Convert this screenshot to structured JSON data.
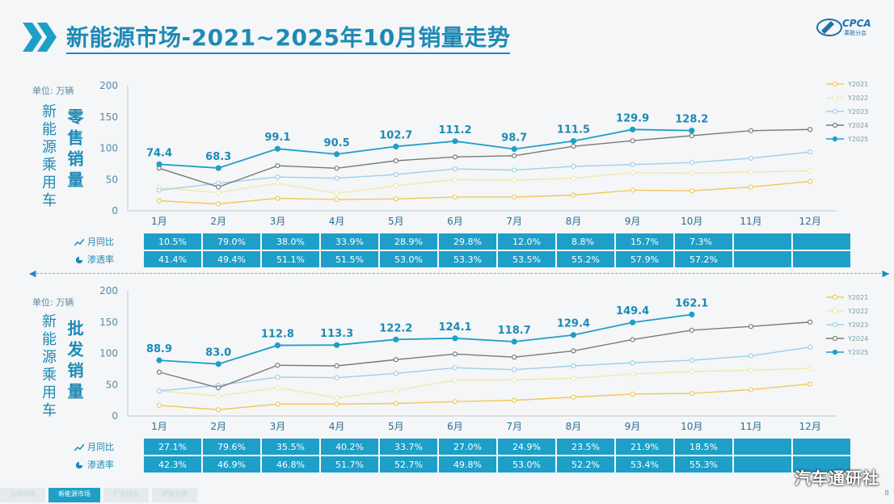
{
  "title": "新能源市场-2021~2025年10月销量走势",
  "brand": {
    "name": "CPCA",
    "sub": "乘联分会"
  },
  "colors": {
    "Y2021": "#f2c85b",
    "Y2022": "#f0eab0",
    "Y2023": "#9fd0ea",
    "Y2024": "#7a7a7a",
    "Y2025": "#1e9fc8"
  },
  "unit_label": "单位: 万辆",
  "side_title": "新能源乘用车",
  "retail_title": "零售销量",
  "wholesale_title": "批发销量",
  "table_labels": {
    "yoy": "月同比",
    "pen": "渗透率"
  },
  "chart_data": [
    {
      "type": "line",
      "categories": [
        "1月",
        "2月",
        "3月",
        "4月",
        "5月",
        "6月",
        "7月",
        "8月",
        "9月",
        "10月",
        "11月",
        "12月"
      ],
      "ylim": [
        0,
        200
      ],
      "yticks": [
        0,
        50,
        100,
        150,
        200
      ],
      "series": [
        {
          "name": "Y2021",
          "values": [
            16,
            11,
            20,
            18,
            19,
            22,
            22,
            25,
            33,
            32,
            38,
            47
          ]
        },
        {
          "name": "Y2022",
          "values": [
            37,
            29,
            44,
            28,
            40,
            50,
            49,
            52,
            61,
            60,
            62,
            64
          ]
        },
        {
          "name": "Y2023",
          "values": [
            33,
            44,
            54,
            52,
            58,
            67,
            65,
            71,
            74,
            77,
            84,
            94
          ]
        },
        {
          "name": "Y2024",
          "values": [
            68,
            38,
            72,
            68,
            80,
            86,
            88,
            103,
            112,
            120,
            128,
            130
          ]
        },
        {
          "name": "Y2025",
          "values": [
            74.4,
            68.3,
            99.1,
            90.5,
            102.7,
            111.2,
            98.7,
            111.5,
            129.9,
            128.2,
            null,
            null
          ]
        }
      ],
      "labels_2025": [
        "74.4",
        "68.3",
        "99.1",
        "90.5",
        "102.7",
        "111.2",
        "98.7",
        "111.5",
        "129.9",
        "128.2"
      ],
      "yoy": [
        "10.5%",
        "79.0%",
        "38.0%",
        "33.9%",
        "28.9%",
        "29.8%",
        "12.0%",
        "8.8%",
        "15.7%",
        "7.3%",
        "",
        ""
      ],
      "penetration": [
        "41.4%",
        "49.4%",
        "51.1%",
        "51.5%",
        "53.0%",
        "53.3%",
        "53.5%",
        "55.2%",
        "57.9%",
        "57.2%",
        "",
        ""
      ]
    },
    {
      "type": "line",
      "categories": [
        "1月",
        "2月",
        "3月",
        "4月",
        "5月",
        "6月",
        "7月",
        "8月",
        "9月",
        "10月",
        "11月",
        "12月"
      ],
      "ylim": [
        0,
        200
      ],
      "yticks": [
        0,
        50,
        100,
        150,
        200
      ],
      "series": [
        {
          "name": "Y2021",
          "values": [
            17,
            10,
            19,
            19,
            20,
            23,
            25,
            30,
            35,
            36,
            42,
            51
          ]
        },
        {
          "name": "Y2022",
          "values": [
            40,
            32,
            45,
            29,
            41,
            57,
            58,
            60,
            67,
            71,
            73,
            76
          ]
        },
        {
          "name": "Y2023",
          "values": [
            40,
            49,
            62,
            61,
            68,
            77,
            74,
            80,
            85,
            89,
            96,
            110
          ]
        },
        {
          "name": "Y2024",
          "values": [
            70,
            45,
            81,
            80,
            90,
            99,
            94,
            104,
            122,
            137,
            143,
            150
          ]
        },
        {
          "name": "Y2025",
          "values": [
            88.9,
            83.0,
            112.8,
            113.3,
            122.2,
            124.1,
            118.7,
            129.4,
            149.4,
            162.1,
            null,
            null
          ]
        }
      ],
      "labels_2025": [
        "88.9",
        "83.0",
        "112.8",
        "113.3",
        "122.2",
        "124.1",
        "118.7",
        "129.4",
        "149.4",
        "162.1"
      ],
      "yoy": [
        "27.1%",
        "79.6%",
        "35.5%",
        "40.2%",
        "33.7%",
        "27.0%",
        "24.9%",
        "23.5%",
        "21.9%",
        "18.5%",
        "",
        ""
      ],
      "penetration": [
        "42.3%",
        "46.9%",
        "46.8%",
        "51.7%",
        "52.7%",
        "49.8%",
        "53.0%",
        "52.2%",
        "53.4%",
        "55.3%",
        "",
        ""
      ]
    }
  ],
  "footer_tabs": [
    "总体市场",
    "新能源市场",
    "厂商排名",
    "终端分析"
  ],
  "watermark": "汽车通研社",
  "page_number": "8"
}
